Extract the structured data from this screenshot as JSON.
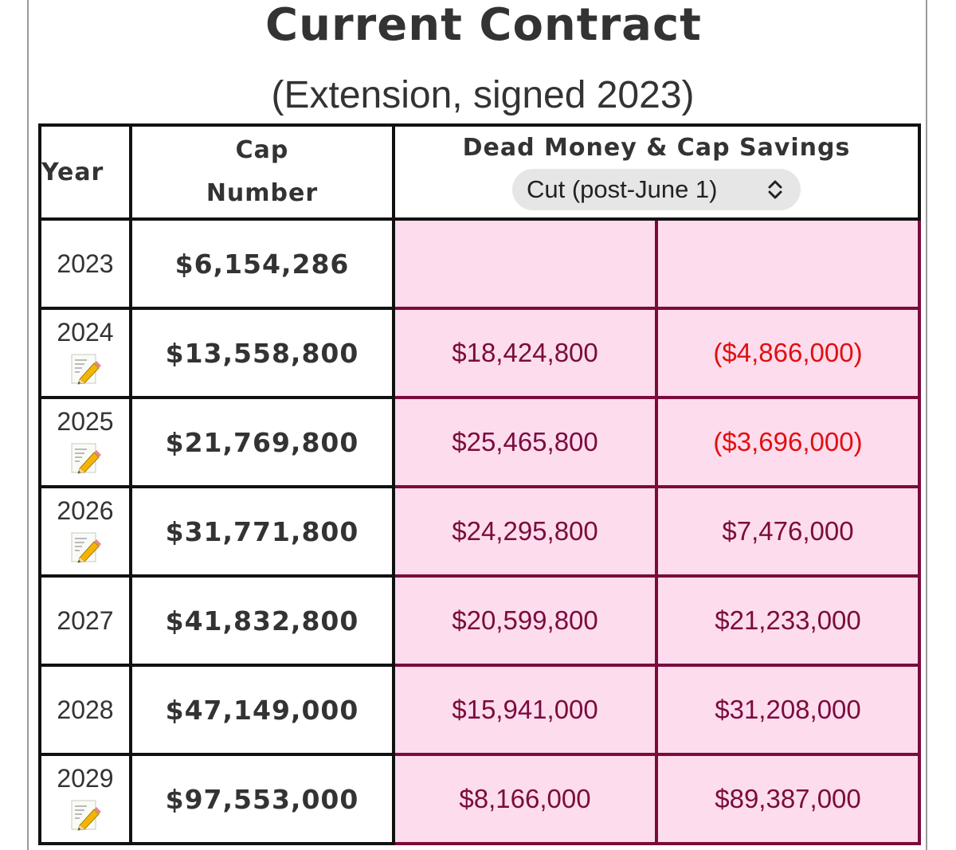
{
  "header": {
    "title": "Current Contract",
    "subtitle": "(Extension, signed 2023)"
  },
  "table": {
    "headers": {
      "year": "Year",
      "cap_line1": "Cap",
      "cap_line2": "Number",
      "dead_money": "Dead Money & Cap Savings"
    },
    "cut_select": {
      "selected": "Cut (post-June 1)",
      "icon": "up-down-chevron-icon"
    },
    "rows": [
      {
        "year": "2023",
        "cap": "$6,154,286",
        "dead": "",
        "savings": "",
        "edit_icon": false
      },
      {
        "year": "2024",
        "cap": "$13,558,800",
        "dead": "$18,424,800",
        "savings": "($4,866,000)",
        "edit_icon": true
      },
      {
        "year": "2025",
        "cap": "$21,769,800",
        "dead": "$25,465,800",
        "savings": "($3,696,000)",
        "edit_icon": true
      },
      {
        "year": "2026",
        "cap": "$31,771,800",
        "dead": "$24,295,800",
        "savings": "$7,476,000",
        "edit_icon": true
      },
      {
        "year": "2027",
        "cap": "$41,832,800",
        "dead": "$20,599,800",
        "savings": "$21,233,000",
        "edit_icon": false
      },
      {
        "year": "2028",
        "cap": "$47,149,000",
        "dead": "$15,941,000",
        "savings": "$31,208,000",
        "edit_icon": false
      },
      {
        "year": "2029",
        "cap": "$97,553,000",
        "dead": "$8,166,000",
        "savings": "$89,387,000",
        "edit_icon": true
      }
    ]
  },
  "colors": {
    "dead_money_text": "#7a0c3c",
    "dead_money_bg": "#fddcee",
    "negative_savings": "#e01010",
    "grid": "#111111"
  }
}
